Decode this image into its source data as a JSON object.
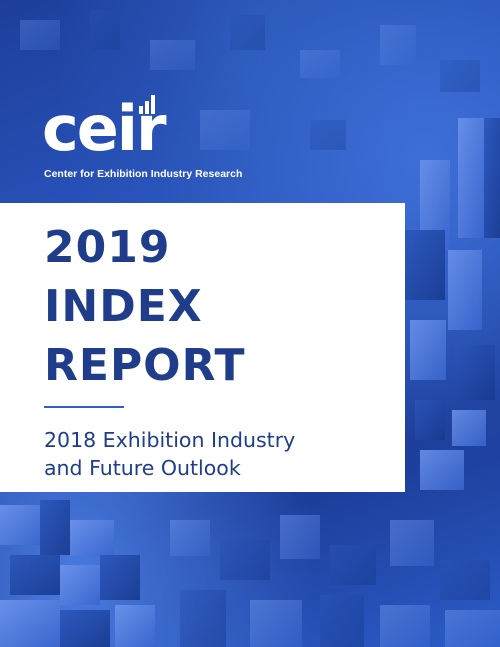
{
  "logo": {
    "wordmark": "ceir",
    "tagline": "Center for Exhibition Industry Research"
  },
  "title": {
    "line1": "2019",
    "line2": "INDEX",
    "line3": "REPORT"
  },
  "subtitle": {
    "line1": "2018 Exhibition Industry",
    "line2": "and Future Outlook"
  },
  "colors": {
    "title": "#1f3d8a",
    "background_blue": "#2a55bf",
    "accent_rule": "#2e5fc1"
  }
}
